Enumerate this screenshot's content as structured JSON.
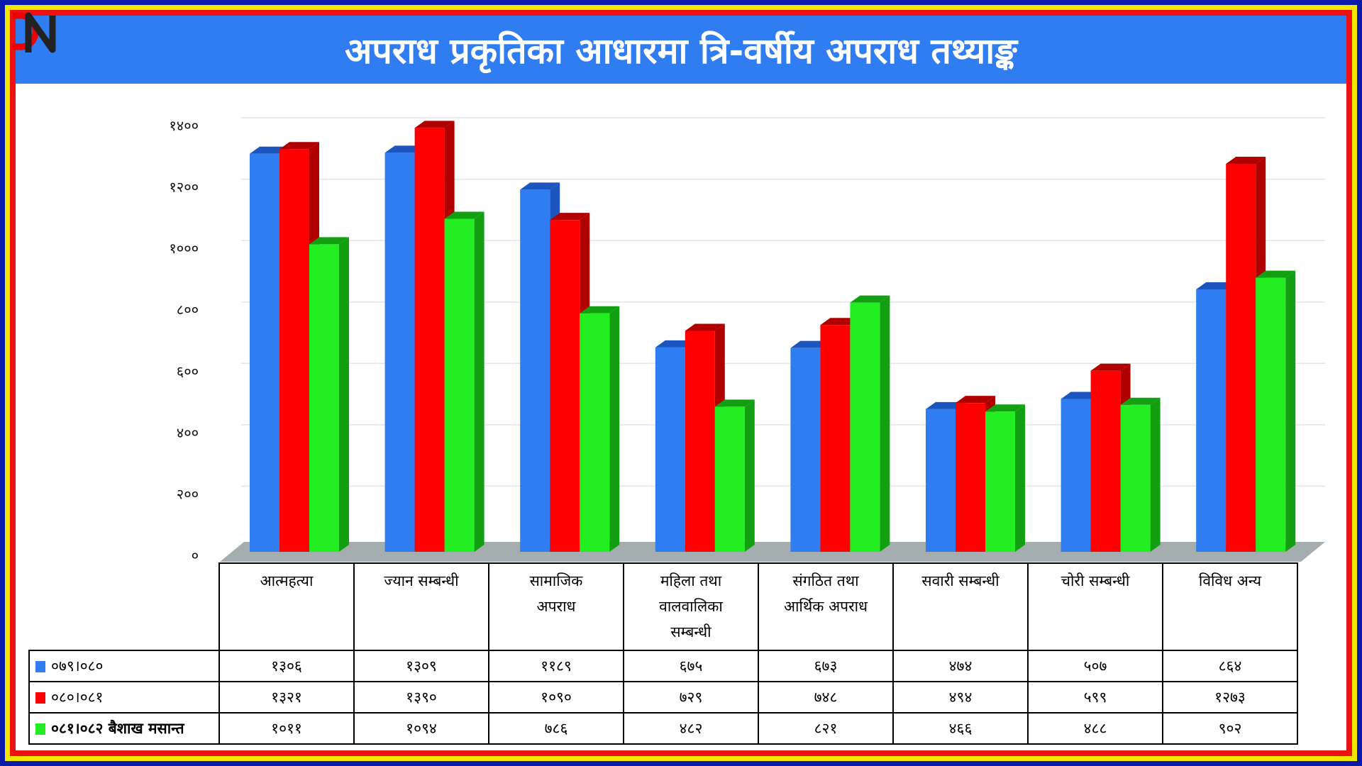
{
  "title": "अपराध प्रकृतिका आधारमा त्रि-वर्षीय अपराध तथ्याङ्क",
  "logo_text": "DN",
  "colors": {
    "series": [
      "#2f7df0",
      "#ff0000",
      "#22ee22"
    ],
    "frame_outer": "#0a1aa8",
    "frame_mid": "#f5e600",
    "frame_inner": "#ee1111",
    "title_bar": "#2f7df0"
  },
  "chart_data": {
    "type": "bar",
    "title": "अपराध प्रकृतिका आधारमा त्रि-वर्षीय अपराध तथ्याङ्क",
    "categories": [
      "आत्महत्या",
      "ज्यान सम्बन्धी",
      "सामाजिक अपराध",
      "महिला तथा वालवालिका सम्बन्धी",
      "संगठित तथा आर्थिक अपराध",
      "सवारी सम्बन्धी",
      "चोरी सम्बन्धी",
      "विविध अन्य"
    ],
    "categories_display": [
      [
        "आत्महत्या"
      ],
      [
        "ज्यान सम्बन्धी"
      ],
      [
        "सामाजिक",
        "अपराध"
      ],
      [
        "महिला तथा",
        "वालवालिका",
        "सम्बन्धी"
      ],
      [
        "संगठित तथा",
        "आर्थिक अपराध"
      ],
      [
        "सवारी सम्बन्धी"
      ],
      [
        "चोरी सम्बन्धी"
      ],
      [
        "विविध अन्य"
      ]
    ],
    "series": [
      {
        "name": "०७९।०८०",
        "values": [
          1306,
          1309,
          1189,
          675,
          673,
          474,
          507,
          864
        ],
        "labels": [
          "१३०६",
          "१३०९",
          "११८९",
          "६७५",
          "६७३",
          "४७४",
          "५०७",
          "८६४"
        ]
      },
      {
        "name": "०८०।०८१",
        "values": [
          1321,
          1390,
          1090,
          729,
          748,
          494,
          599,
          1273
        ],
        "labels": [
          "१३२१",
          "१३९०",
          "१०९०",
          "७२९",
          "७४८",
          "४९४",
          "५९९",
          "१२७३"
        ]
      },
      {
        "name": "०८१।०८२ बैशाख मसान्त",
        "values": [
          1011,
          1094,
          786,
          482,
          821,
          466,
          488,
          902
        ],
        "labels": [
          "१०११",
          "१०९४",
          "७८६",
          "४८२",
          "८२१",
          "४६६",
          "४८८",
          "९०२"
        ]
      }
    ],
    "yticks": [
      0,
      200,
      400,
      600,
      800,
      1000,
      1200,
      1400
    ],
    "ytick_labels": [
      "०",
      "२००",
      "४००",
      "६००",
      "८००",
      "१०००",
      "१२००",
      "१४००"
    ],
    "ylim": [
      0,
      1400
    ],
    "grid": true,
    "style": "3d-clustered-bar",
    "legend": "data-table-below"
  }
}
